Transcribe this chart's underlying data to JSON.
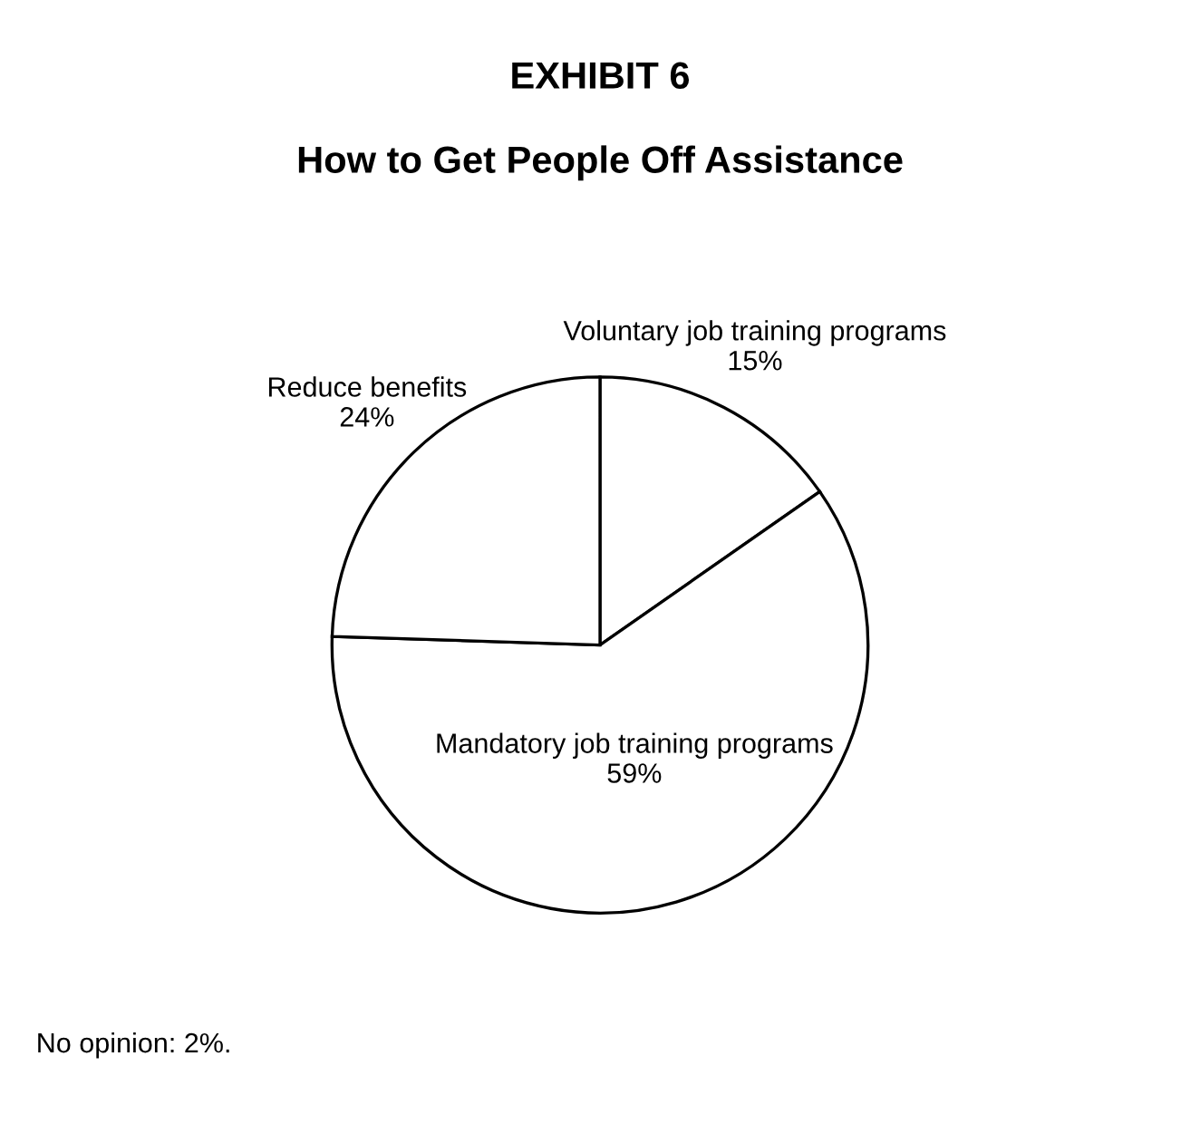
{
  "chart_data": {
    "type": "pie",
    "title": "EXHIBIT 6",
    "subtitle": "How to Get People Off Assistance",
    "categories": [
      "Voluntary job training programs",
      "Mandatory job training programs",
      "Reduce benefits"
    ],
    "values": [
      15,
      59,
      24
    ],
    "colors": [
      "#ffffff",
      "#ffffff",
      "#ffffff"
    ],
    "value_labels": [
      "15%",
      "59%",
      "24%"
    ],
    "annotations": [
      "No opinion: 2%."
    ]
  }
}
